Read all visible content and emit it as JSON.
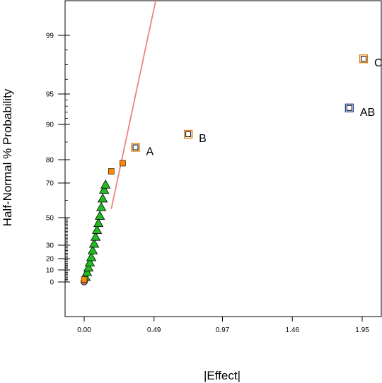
{
  "chart_data": {
    "type": "scatter",
    "title": "",
    "xlabel": "|Effect|",
    "ylabel": "Half-Normal % Probability",
    "xlim": [
      -0.12,
      2.07
    ],
    "ylim_note": "half-normal probability scale",
    "x_ticks": [
      {
        "value": 0.0,
        "label": "0.00"
      },
      {
        "value": 0.49,
        "label": "0.49"
      },
      {
        "value": 0.97,
        "label": "0.97"
      },
      {
        "value": 1.46,
        "label": "1.46"
      },
      {
        "value": 1.95,
        "label": "1.95"
      }
    ],
    "y_labeled_ticks": [
      {
        "value": 0,
        "label": "0"
      },
      {
        "value": 10,
        "label": "10"
      },
      {
        "value": 20,
        "label": "20"
      },
      {
        "value": 30,
        "label": "30"
      },
      {
        "value": 50,
        "label": "50"
      },
      {
        "value": 70,
        "label": "70"
      },
      {
        "value": 80,
        "label": "80"
      },
      {
        "value": 90,
        "label": "90"
      },
      {
        "value": 95,
        "label": "95"
      },
      {
        "value": 99,
        "label": "99"
      }
    ],
    "y_minor_ticks": [
      1,
      2,
      3,
      4,
      5,
      6,
      7,
      8,
      9,
      11,
      12,
      13,
      14,
      15,
      16,
      17,
      18,
      19,
      21,
      22,
      23,
      24,
      25,
      26,
      27,
      28,
      29,
      31,
      32,
      33,
      34,
      35,
      36,
      37,
      38,
      39,
      40,
      41,
      42,
      43,
      44,
      45,
      46,
      47,
      48,
      49,
      60,
      85,
      91,
      92,
      93,
      94,
      96,
      97,
      98
    ],
    "reference_line": {
      "color": "#f08080",
      "from": {
        "effect": 0.19,
        "prob": 55
      },
      "to": {
        "effect": 0.56,
        "prob": 99.95
      }
    },
    "series": [
      {
        "marker": "triangle",
        "fill": "#22bb22",
        "points": [
          {
            "x": 0.01,
            "y": 4
          },
          {
            "x": 0.02,
            "y": 8
          },
          {
            "x": 0.03,
            "y": 12
          },
          {
            "x": 0.04,
            "y": 16.5
          },
          {
            "x": 0.05,
            "y": 21
          },
          {
            "x": 0.06,
            "y": 26
          },
          {
            "x": 0.07,
            "y": 31
          },
          {
            "x": 0.08,
            "y": 36
          },
          {
            "x": 0.09,
            "y": 41
          },
          {
            "x": 0.1,
            "y": 46
          },
          {
            "x": 0.11,
            "y": 51
          },
          {
            "x": 0.12,
            "y": 56
          },
          {
            "x": 0.13,
            "y": 61
          },
          {
            "x": 0.14,
            "y": 66
          },
          {
            "x": 0.15,
            "y": 69
          }
        ]
      },
      {
        "marker": "circle",
        "fill": "#c07080",
        "points": [
          {
            "x": 0.0,
            "y": 0.1
          }
        ]
      },
      {
        "marker": "square-filled",
        "fill": "#ff8800",
        "points": [
          {
            "x": 0.0,
            "y": 2
          },
          {
            "x": 0.19,
            "y": 75
          },
          {
            "x": 0.27,
            "y": 78.5
          }
        ]
      },
      {
        "marker": "square-open",
        "stroke": "#e07800",
        "points": [
          {
            "x": 0.36,
            "y": 83.5,
            "label": "A"
          },
          {
            "x": 0.73,
            "y": 87.2,
            "label": "B"
          },
          {
            "x": 1.96,
            "y": 97.4,
            "label": "C"
          }
        ]
      },
      {
        "marker": "square-open",
        "stroke": "#1f3fa0",
        "points": [
          {
            "x": 1.86,
            "y": 92.7,
            "label": "AB"
          }
        ]
      }
    ]
  }
}
